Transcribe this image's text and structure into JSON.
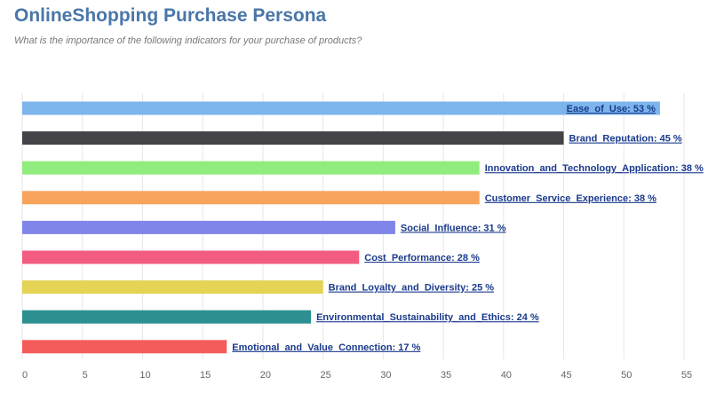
{
  "title": "OnlineShopping Purchase Persona",
  "subtitle": "What is the importance of the following indicators for your purchase of products?",
  "chart_data": {
    "type": "bar",
    "orientation": "horizontal",
    "categories": [
      "Ease_of_Use",
      "Brand_Reputation",
      "Innovation_and_Technology_Application",
      "Customer_Service_Experience",
      "Social_Influence",
      "Cost_Performance",
      "Brand_Loyalty_and_Diversity",
      "Environmental_Sustainability_and_Ethics",
      "Emotional_and_Value_Connection"
    ],
    "values": [
      53,
      45,
      38,
      38,
      31,
      28,
      25,
      24,
      17
    ],
    "unit": "%",
    "colors": [
      "#7cb5ec",
      "#434348",
      "#90ed7d",
      "#f7a35c",
      "#8085e9",
      "#f15c80",
      "#e4d354",
      "#2b908f",
      "#f45b5b"
    ],
    "xlim": [
      0,
      55
    ],
    "xticks": [
      0,
      5,
      10,
      15,
      20,
      25,
      30,
      35,
      40,
      45,
      50,
      55
    ],
    "grid": true,
    "legend": "none"
  }
}
